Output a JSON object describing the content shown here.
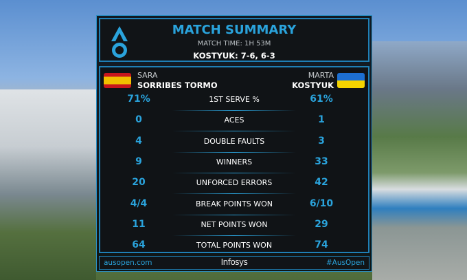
{
  "header": {
    "title": "MATCH SUMMARY",
    "match_time": "MATCH TIME: 1H 53M",
    "result": "KOSTYUK: 7-6, 6-3",
    "logo": "AO"
  },
  "players": {
    "left": {
      "first": "SARA",
      "last": "SORRIBES TORMO",
      "flag": "spain-flag"
    },
    "right": {
      "first": "MARTA",
      "last": "KOSTYUK",
      "flag": "ukraine-flag"
    }
  },
  "stats": [
    {
      "label": "1ST SERVE %",
      "left": "71%",
      "right": "61%"
    },
    {
      "label": "ACES",
      "left": "0",
      "right": "1"
    },
    {
      "label": "DOUBLE FAULTS",
      "left": "4",
      "right": "3"
    },
    {
      "label": "WINNERS",
      "left": "9",
      "right": "33"
    },
    {
      "label": "UNFORCED ERRORS",
      "left": "20",
      "right": "42"
    },
    {
      "label": "BREAK POINTS WON",
      "left": "4/4",
      "right": "6/10"
    },
    {
      "label": "NET POINTS WON",
      "left": "11",
      "right": "29"
    },
    {
      "label": "TOTAL POINTS WON",
      "left": "64",
      "right": "74"
    }
  ],
  "footer": {
    "website": "ausopen.com",
    "sponsor": "Infosys",
    "hashtag": "#AusOpen"
  },
  "colors": {
    "accent": "#2aa3dc",
    "panel": "#101316"
  }
}
